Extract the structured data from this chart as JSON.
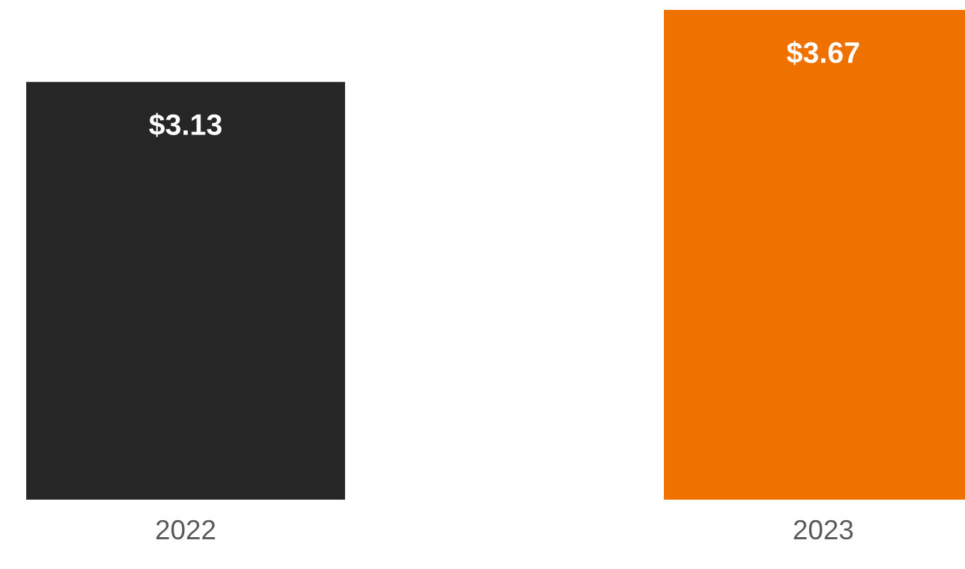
{
  "chart_data": {
    "type": "bar",
    "categories": [
      "2022",
      "2023"
    ],
    "values": [
      3.13,
      3.67
    ],
    "colors": [
      "#262626",
      "#ef7100"
    ],
    "value_labels": [
      "$3.13",
      "$3.67"
    ],
    "ylim": [
      0,
      3.67
    ],
    "tick_labels": "x",
    "grid": false,
    "legend": false
  }
}
